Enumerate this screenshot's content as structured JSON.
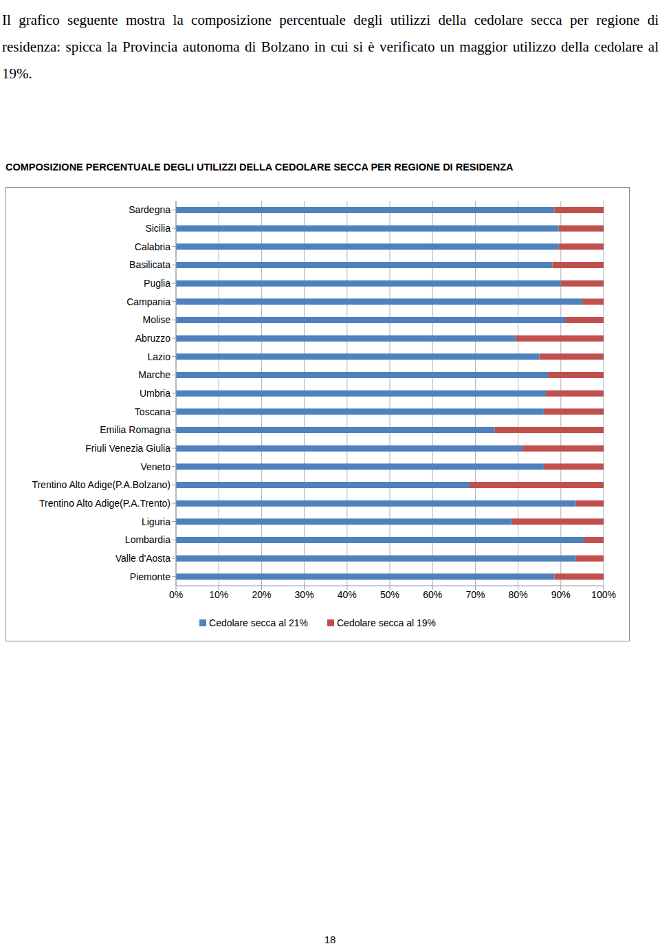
{
  "text": "Il grafico seguente mostra la composizione percentuale degli utilizzi della cedolare secca per regione di residenza: spicca la Provincia autonoma di Bolzano in cui si è verificato un maggior utilizzo della cedolare al 19%.",
  "chart_data": {
    "type": "bar",
    "title": "COMPOSIZIONE PERCENTUALE DEGLI UTILIZZI DELLA CEDOLARE SECCA PER REGIONE DI RESIDENZA",
    "orientation": "horizontal",
    "stacked": true,
    "grid": true,
    "legend": "bottom",
    "categories": [
      "Sardegna",
      "Sicilia",
      "Calabria",
      "Basilicata",
      "Puglia",
      "Campania",
      "Molise",
      "Abruzzo",
      "Lazio",
      "Marche",
      "Umbria",
      "Toscana",
      "Emilia Romagna",
      "Friuli Venezia Giulia",
      "Veneto",
      "Trentino Alto Adige(P.A.Bolzano)",
      "Trentino Alto Adige(P.A.Trento)",
      "Liguria",
      "Lombardia",
      "Valle d'Aosta",
      "Piemonte"
    ],
    "series": [
      {
        "name": "Cedolare secca al 21%",
        "color": "#4f81bd",
        "values": [
          88.5,
          89.5,
          89.5,
          88,
          90,
          95,
          91,
          79.5,
          85,
          87,
          86.5,
          86,
          74.5,
          81,
          86,
          68.5,
          93.5,
          78.5,
          95.5,
          93.5,
          88.5
        ]
      },
      {
        "name": "Cedolare secca al 19%",
        "color": "#c0504d",
        "values": [
          11.5,
          10.5,
          10.5,
          12,
          10,
          5,
          9,
          20.5,
          15,
          13,
          13.5,
          14,
          25.5,
          19,
          14,
          31.5,
          6.5,
          21.5,
          4.5,
          6.5,
          11.5
        ]
      }
    ],
    "xlim": [
      0,
      100
    ],
    "xticks": [
      {
        "value": 0,
        "label": "0%"
      },
      {
        "value": 10,
        "label": "10%"
      },
      {
        "value": 20,
        "label": "20%"
      },
      {
        "value": 30,
        "label": "30%"
      },
      {
        "value": 40,
        "label": "40%"
      },
      {
        "value": 50,
        "label": "50%"
      },
      {
        "value": 60,
        "label": "60%"
      },
      {
        "value": 70,
        "label": "70%"
      },
      {
        "value": 80,
        "label": "80%"
      },
      {
        "value": 90,
        "label": "90%"
      },
      {
        "value": 100,
        "label": "100%"
      }
    ]
  },
  "page_number": "18"
}
